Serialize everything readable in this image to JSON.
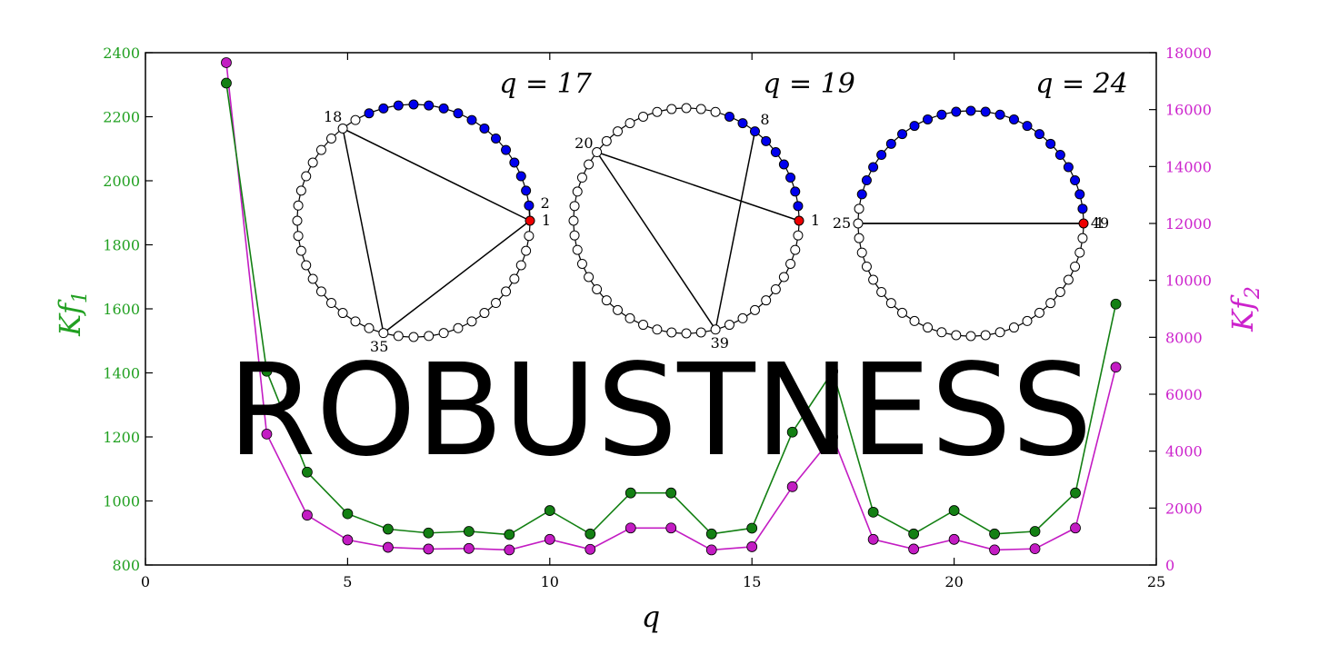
{
  "overlay_text": "ROBUSTNESS",
  "colors": {
    "left_series": "#138013",
    "right_series": "#c31cc3",
    "left_axis": "#21a021",
    "right_axis": "#cc22cc",
    "node_blue": "#0000ee",
    "node_red": "#ee0000"
  },
  "chart_data": {
    "type": "line",
    "xlabel": "q",
    "xlim": [
      0,
      25
    ],
    "xticks": [
      0,
      5,
      10,
      15,
      20,
      25
    ],
    "x": [
      2,
      3,
      4,
      5,
      6,
      7,
      8,
      9,
      10,
      11,
      12,
      13,
      14,
      15,
      16,
      17,
      18,
      19,
      20,
      21,
      22,
      23,
      24
    ],
    "series": [
      {
        "name": "Kf_1",
        "axis": "left",
        "ylabel": "Kf_1",
        "ylim": [
          800,
          2400
        ],
        "yticks": [
          800,
          1000,
          1200,
          1400,
          1600,
          1800,
          2000,
          2200,
          2400
        ],
        "values": [
          2305,
          1405,
          1090,
          960,
          912,
          900,
          905,
          895,
          970,
          897,
          1025,
          1025,
          897,
          915,
          1215,
          1405,
          965,
          897,
          970,
          897,
          905,
          1025,
          1615
        ]
      },
      {
        "name": "Kf_2",
        "axis": "right",
        "ylabel": "Kf_2",
        "ylim": [
          0,
          18000
        ],
        "yticks": [
          0,
          2000,
          4000,
          6000,
          8000,
          10000,
          12000,
          14000,
          16000,
          18000
        ],
        "values": [
          17650,
          4600,
          1750,
          880,
          620,
          560,
          580,
          530,
          900,
          550,
          1300,
          1300,
          530,
          640,
          2750,
          4500,
          900,
          560,
          900,
          530,
          570,
          1300,
          6950
        ]
      }
    ],
    "insets": [
      {
        "q_label": "q = 17",
        "nodes": 48,
        "highlight": 1,
        "blue_start": 2,
        "blue_end": 16,
        "edges": [
          [
            1,
            35
          ],
          [
            35,
            18
          ],
          [
            18,
            1
          ],
          [
            1,
            2
          ]
        ],
        "labels": [
          [
            "35",
            35
          ],
          [
            "1",
            1
          ],
          [
            "2",
            2
          ],
          [
            "18",
            18
          ]
        ]
      },
      {
        "q_label": "q = 19",
        "nodes": 48,
        "highlight": 1,
        "blue_start": 2,
        "blue_end": 10,
        "edges": [
          [
            39,
            8
          ],
          [
            39,
            20
          ],
          [
            20,
            1
          ]
        ],
        "labels": [
          [
            "39",
            39
          ],
          [
            "1",
            1
          ],
          [
            "8",
            8
          ],
          [
            "20",
            20
          ]
        ]
      },
      {
        "q_label": "q = 24",
        "nodes": 48,
        "highlight": 1,
        "blue_start": 2,
        "blue_end": 23,
        "edges": [
          [
            25,
            49
          ],
          [
            25,
            1
          ]
        ],
        "labels": [
          [
            "49",
            49
          ],
          [
            "1",
            1
          ],
          [
            "25",
            25
          ]
        ]
      }
    ]
  }
}
